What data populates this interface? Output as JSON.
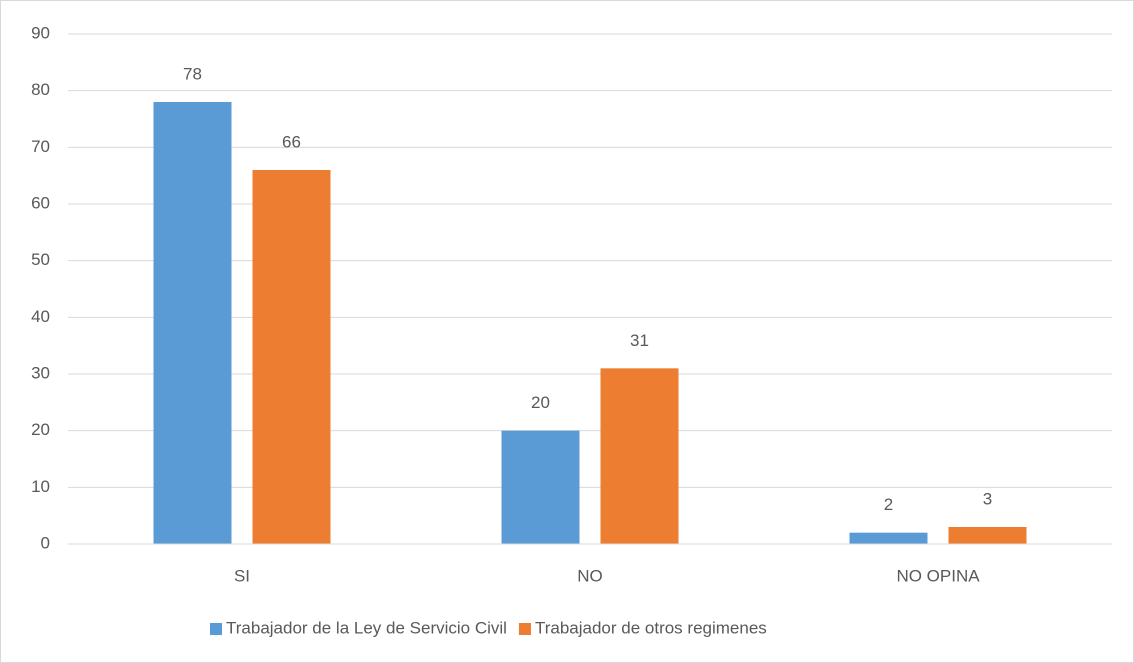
{
  "chart_data": {
    "type": "bar",
    "categories": [
      "SI",
      "NO",
      "NO OPINA"
    ],
    "series": [
      {
        "name": "Trabajador de la Ley de Servicio Civil",
        "color": "#5b9bd5",
        "values": [
          78,
          20,
          2
        ]
      },
      {
        "name": "Trabajador de otros regimenes",
        "color": "#ed7d31",
        "values": [
          66,
          31,
          3
        ]
      }
    ],
    "ylim": [
      0,
      90
    ],
    "yticks": [
      0,
      10,
      20,
      30,
      40,
      50,
      60,
      70,
      80,
      90
    ],
    "grid": true,
    "legend": "bottom",
    "data_labels": true
  }
}
